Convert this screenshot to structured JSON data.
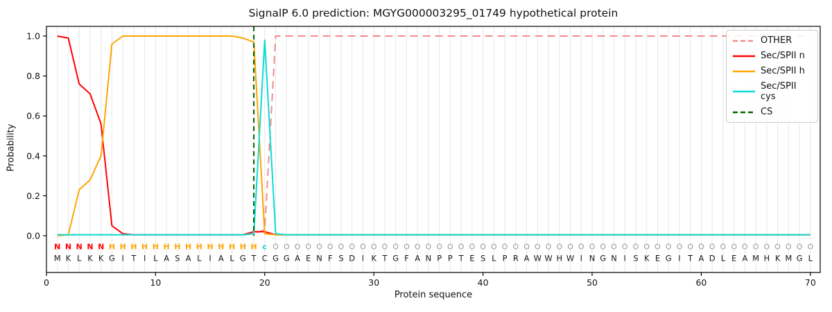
{
  "chart": {
    "title": "SignalP 6.0 prediction: MGYG000003295_01749 hypothetical protein",
    "xlabel": "Protein sequence",
    "ylabel": "Probability"
  },
  "legend": {
    "entries": [
      {
        "label": "OTHER",
        "color": "#f28b8b",
        "dash": true
      },
      {
        "label": "Sec/SPII n",
        "color": "#ff0000",
        "dash": false
      },
      {
        "label": "Sec/SPII h",
        "color": "#ffa500",
        "dash": false
      },
      {
        "label": "Sec/SPII cys",
        "color": "#0adbd5",
        "dash": false
      },
      {
        "label": "CS",
        "color": "#006400",
        "dash": true
      }
    ]
  },
  "chart_data": {
    "type": "line",
    "title": "SignalP 6.0 prediction: MGYG000003295_01749 hypothetical protein",
    "xlabel": "Protein sequence",
    "ylabel": "Probability",
    "xlim": [
      0,
      70.9
    ],
    "ylim": [
      -0.184,
      1.049
    ],
    "x_ticks": [
      0,
      10,
      20,
      30,
      40,
      50,
      60,
      70
    ],
    "y_ticks": [
      0.0,
      0.2,
      0.4,
      0.6,
      0.8,
      1.0
    ],
    "grid": "vertical gridline at every residue position 1-70",
    "legend_position": "upper right",
    "x_start": 1,
    "cs_position": 19,
    "sequence": "MKLKKGITILASALIALGTCGGAENFSDIKTGFANPPTESLPRAWWHWINGNISKEGITADLEAMHKMGL",
    "annotation": "NNNNNHHHHHHHHHHHHHHcOOOOOOOOOOOOOOOOOOOOOOOOOOOOOOOOOOOOOOOOOOOOOOOOOO",
    "annotation_colors": {
      "N": "#ff0000",
      "H": "#ffa500",
      "c": "#0adbd5",
      "O": "#9a9a9a"
    },
    "sequence_color": "#1a1a1a",
    "gridline_color": "#e7e7e7",
    "series": [
      {
        "name": "OTHER",
        "color": "#f28b8b",
        "style": "dashed",
        "values": [
          0.005,
          0.005,
          0.005,
          0.005,
          0.005,
          0.005,
          0.005,
          0.005,
          0.005,
          0.005,
          0.005,
          0.005,
          0.005,
          0.005,
          0.005,
          0.005,
          0.005,
          0.005,
          0.01,
          0.03,
          1.0,
          1.0,
          1.0,
          1.0,
          1.0,
          1.0,
          1.0,
          1.0,
          1.0,
          1.0,
          1.0,
          1.0,
          1.0,
          1.0,
          1.0,
          1.0,
          1.0,
          1.0,
          1.0,
          1.0,
          1.0,
          1.0,
          1.0,
          1.0,
          1.0,
          1.0,
          1.0,
          1.0,
          1.0,
          1.0,
          1.0,
          1.0,
          1.0,
          1.0,
          1.0,
          1.0,
          1.0,
          1.0,
          1.0,
          1.0,
          1.0,
          1.0,
          1.0,
          1.0,
          1.0,
          1.0,
          1.0,
          1.0,
          1.0,
          1.0
        ]
      },
      {
        "name": "Sec/SPII n",
        "color": "#ff0000",
        "style": "solid",
        "values": [
          1.0,
          0.99,
          0.76,
          0.71,
          0.56,
          0.05,
          0.01,
          0.005,
          0.005,
          0.005,
          0.005,
          0.005,
          0.005,
          0.005,
          0.005,
          0.005,
          0.005,
          0.005,
          0.02,
          0.02,
          0.005,
          0.005,
          0.005,
          0.005,
          0.005,
          0.005,
          0.005,
          0.005,
          0.005,
          0.005,
          0.005,
          0.005,
          0.005,
          0.005,
          0.005,
          0.005,
          0.005,
          0.005,
          0.005,
          0.005,
          0.005,
          0.005,
          0.005,
          0.005,
          0.005,
          0.005,
          0.005,
          0.005,
          0.005,
          0.005,
          0.005,
          0.005,
          0.005,
          0.005,
          0.005,
          0.005,
          0.005,
          0.005,
          0.005,
          0.005,
          0.005,
          0.005,
          0.005,
          0.005,
          0.005,
          0.005,
          0.005,
          0.005,
          0.005,
          0.005
        ]
      },
      {
        "name": "Sec/SPII h",
        "color": "#ffa500",
        "style": "solid",
        "values": [
          0.0,
          0.005,
          0.23,
          0.28,
          0.4,
          0.96,
          1.0,
          1.0,
          1.0,
          1.0,
          1.0,
          1.0,
          1.0,
          1.0,
          1.0,
          1.0,
          1.0,
          0.99,
          0.97,
          0.01,
          0.005,
          0.005,
          0.005,
          0.005,
          0.005,
          0.005,
          0.005,
          0.005,
          0.005,
          0.005,
          0.005,
          0.005,
          0.005,
          0.005,
          0.005,
          0.005,
          0.005,
          0.005,
          0.005,
          0.005,
          0.005,
          0.005,
          0.005,
          0.005,
          0.005,
          0.005,
          0.005,
          0.005,
          0.005,
          0.005,
          0.005,
          0.005,
          0.005,
          0.005,
          0.005,
          0.005,
          0.005,
          0.005,
          0.005,
          0.005,
          0.005,
          0.005,
          0.005,
          0.005,
          0.005,
          0.005,
          0.005,
          0.005,
          0.005,
          0.005
        ]
      },
      {
        "name": "Sec/SPII cys",
        "color": "#0adbd5",
        "style": "solid",
        "values": [
          0.005,
          0.005,
          0.005,
          0.005,
          0.005,
          0.005,
          0.005,
          0.005,
          0.005,
          0.005,
          0.005,
          0.005,
          0.005,
          0.005,
          0.005,
          0.005,
          0.005,
          0.005,
          0.01,
          0.98,
          0.01,
          0.005,
          0.005,
          0.005,
          0.005,
          0.005,
          0.005,
          0.005,
          0.005,
          0.005,
          0.005,
          0.005,
          0.005,
          0.005,
          0.005,
          0.005,
          0.005,
          0.005,
          0.005,
          0.005,
          0.005,
          0.005,
          0.005,
          0.005,
          0.005,
          0.005,
          0.005,
          0.005,
          0.005,
          0.005,
          0.005,
          0.005,
          0.005,
          0.005,
          0.005,
          0.005,
          0.005,
          0.005,
          0.005,
          0.005,
          0.005,
          0.005,
          0.005,
          0.005,
          0.005,
          0.005,
          0.005,
          0.005,
          0.005,
          0.005
        ]
      }
    ],
    "cs_series": {
      "name": "CS",
      "color": "#006400",
      "style": "dashed"
    }
  }
}
